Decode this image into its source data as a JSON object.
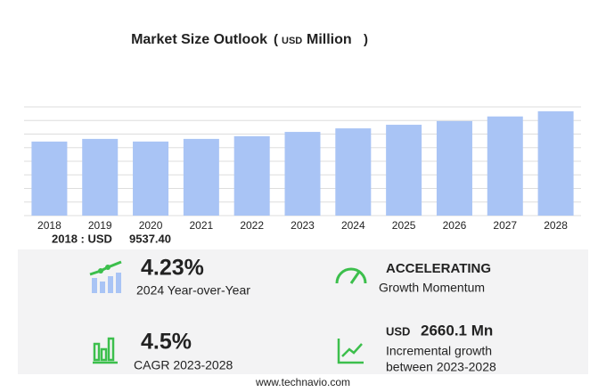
{
  "chart_data": {
    "type": "bar",
    "title": "Market Size Outlook",
    "unit_prefix": "USD",
    "unit": "Million",
    "categories": [
      "2018",
      "2019",
      "2020",
      "2021",
      "2022",
      "2023",
      "2024",
      "2025",
      "2026",
      "2027",
      "2028"
    ],
    "values": [
      9537.4,
      9880,
      9540,
      9880,
      10230,
      10780,
      11236,
      11700,
      12180,
      12770,
      13440
    ],
    "color": "#a9c4f5",
    "ylim": [
      0,
      14000
    ],
    "gridlines": [
      0,
      1750,
      3500,
      5250,
      7000,
      8750,
      10500,
      12250,
      14000
    ],
    "grid": true
  },
  "summary": {
    "base_label": "2018 : USD",
    "base_value": "9537.40"
  },
  "stats": {
    "yoy": {
      "value": "4.23%",
      "label": "2024 Year-over-Year"
    },
    "momentum": {
      "value": "ACCELERATING",
      "label": "Growth Momentum"
    },
    "cagr": {
      "value": "4.5%",
      "label": "CAGR 2023-2028"
    },
    "incremental": {
      "prefix": "USD",
      "value": "2660.1 Mn",
      "label1": "Incremental growth",
      "label2": "between 2023-2028"
    }
  },
  "footer": "www.technavio.com"
}
